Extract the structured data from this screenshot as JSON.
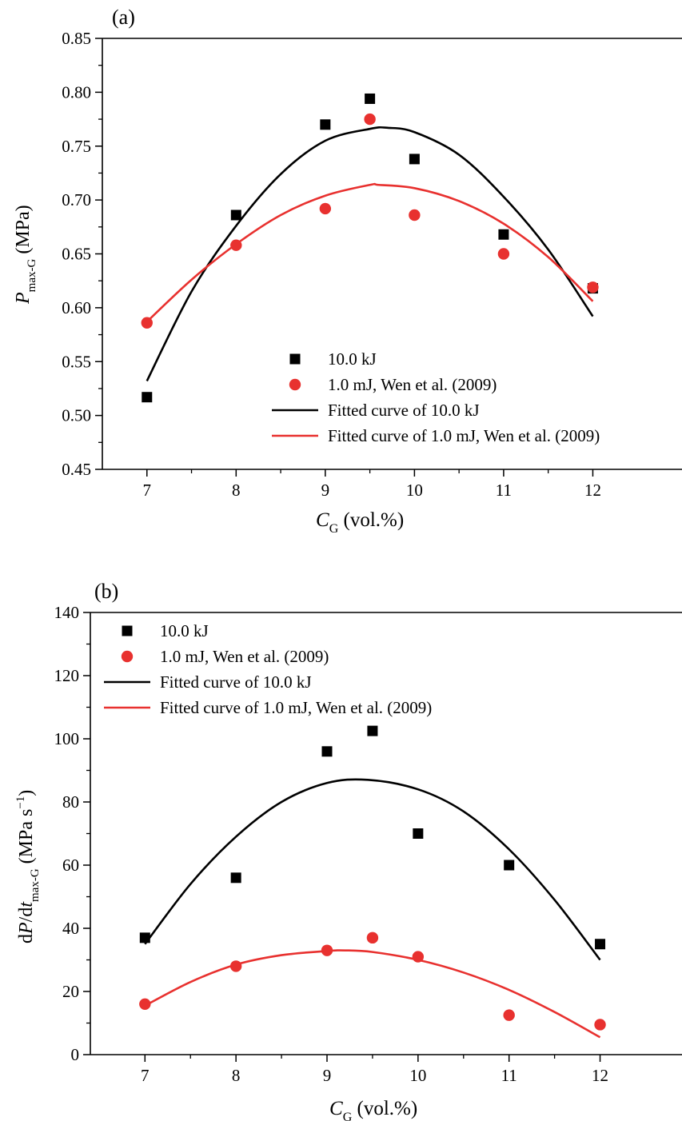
{
  "colors": {
    "black_series": "#000000",
    "red_series": "#e8312f",
    "axis": "#000000"
  },
  "chart_data": [
    {
      "panel_label": "(a)",
      "type": "scatter",
      "xlabel_main": "C",
      "xlabel_sub": "G",
      "xlabel_rest": " (vol.%)",
      "ylabel_main": "P",
      "ylabel_sub": "max-G",
      "ylabel_rest": " (MPa)",
      "xlim": [
        6.5,
        13
      ],
      "ylim": [
        0.45,
        0.85
      ],
      "xticks": [
        7,
        8,
        9,
        10,
        11,
        12
      ],
      "xtick_labels": [
        "7",
        "8",
        "9",
        "10",
        "11",
        "12"
      ],
      "yticks": [
        0.45,
        0.5,
        0.55,
        0.6,
        0.65,
        0.7,
        0.75,
        0.8,
        0.85
      ],
      "ytick_labels": [
        "0.45",
        "0.50",
        "0.55",
        "0.60",
        "0.65",
        "0.70",
        "0.75",
        "0.80",
        "0.85"
      ],
      "legend_position": "bottom-right",
      "series": [
        {
          "name": "10.0 kJ",
          "kind": "points",
          "marker": "square",
          "color": "#000000",
          "x": [
            7,
            8,
            9,
            9.5,
            10,
            11,
            12
          ],
          "y": [
            0.517,
            0.686,
            0.77,
            0.794,
            0.738,
            0.668,
            0.618
          ]
        },
        {
          "name": "1.0 mJ, Wen et al. (2009)",
          "kind": "points",
          "marker": "circle",
          "color": "#e8312f",
          "x": [
            7,
            8,
            9,
            9.5,
            10,
            11,
            12
          ],
          "y": [
            0.586,
            0.658,
            0.692,
            0.775,
            0.686,
            0.65,
            0.619
          ]
        },
        {
          "name": "Fitted curve of 10.0 kJ",
          "kind": "line",
          "color": "#000000",
          "x": [
            7,
            7.5,
            8,
            8.5,
            9,
            9.5,
            9.7,
            10,
            10.5,
            11,
            11.5,
            12
          ],
          "y": [
            0.532,
            0.615,
            0.676,
            0.724,
            0.755,
            0.766,
            0.767,
            0.763,
            0.742,
            0.703,
            0.654,
            0.592
          ]
        },
        {
          "name": "Fitted curve of 1.0 mJ, Wen et al. (2009)",
          "kind": "line",
          "color": "#e8312f",
          "x": [
            7,
            7.5,
            8,
            8.5,
            9,
            9.5,
            9.6,
            10,
            10.5,
            11,
            11.5,
            12
          ],
          "y": [
            0.587,
            0.626,
            0.659,
            0.686,
            0.704,
            0.714,
            0.714,
            0.711,
            0.699,
            0.678,
            0.647,
            0.606
          ]
        }
      ]
    },
    {
      "panel_label": "(b)",
      "type": "scatter",
      "xlabel_main": "C",
      "xlabel_sub": "G",
      "xlabel_rest": " (vol.%)",
      "ylabel_pre": "d",
      "ylabel_main": "P",
      "ylabel_mid": "/d",
      "ylabel_t": "t",
      "ylabel_sub": "max-G",
      "ylabel_rest": " (MPa s",
      "ylabel_sup": "−1",
      "ylabel_close": ")",
      "xlim": [
        6.4,
        12.9
      ],
      "ylim": [
        0,
        140
      ],
      "xticks": [
        7,
        8,
        9,
        10,
        11,
        12
      ],
      "xtick_labels": [
        "7",
        "8",
        "9",
        "10",
        "11",
        "12"
      ],
      "yticks": [
        0,
        20,
        40,
        60,
        80,
        100,
        120,
        140
      ],
      "ytick_labels": [
        "0",
        "20",
        "40",
        "60",
        "80",
        "100",
        "120",
        "140"
      ],
      "legend_position": "top-left",
      "series": [
        {
          "name": "10.0 kJ",
          "kind": "points",
          "marker": "square",
          "color": "#000000",
          "x": [
            7,
            8,
            9,
            9.5,
            10,
            11,
            12
          ],
          "y": [
            37,
            56,
            96,
            102.5,
            70,
            60,
            35
          ]
        },
        {
          "name": "1.0 mJ, Wen et al. (2009)",
          "kind": "points",
          "marker": "circle",
          "color": "#e8312f",
          "x": [
            7,
            8,
            9,
            9.5,
            10,
            11,
            12
          ],
          "y": [
            16,
            28,
            33,
            37,
            31,
            12.5,
            9.5
          ]
        },
        {
          "name": "Fitted curve of 10.0 kJ",
          "kind": "line",
          "color": "#000000",
          "x": [
            7,
            7.5,
            8,
            8.5,
            9,
            9.45,
            10,
            10.5,
            11,
            11.5,
            12
          ],
          "y": [
            35,
            54,
            69,
            80,
            86,
            87,
            84,
            77,
            65,
            49,
            30
          ]
        },
        {
          "name": "Fitted curve of 1.0 mJ, Wen et al. (2009)",
          "kind": "line",
          "color": "#e8312f",
          "x": [
            7,
            7.5,
            8,
            8.5,
            9,
            9.2,
            9.5,
            10,
            10.5,
            11,
            11.5,
            12
          ],
          "y": [
            15.5,
            23,
            28.5,
            31.5,
            32.8,
            33,
            32.5,
            30,
            26,
            20.5,
            13.5,
            5.5
          ]
        }
      ]
    }
  ]
}
